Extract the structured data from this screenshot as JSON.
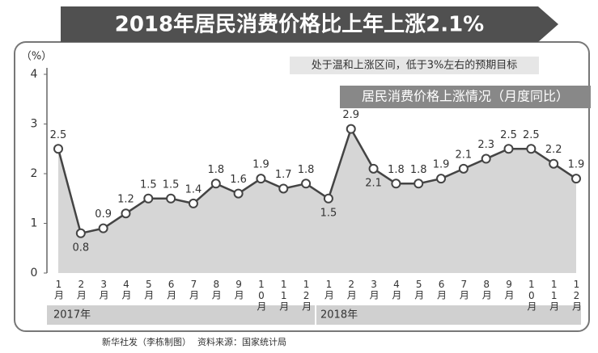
{
  "chart_data": {
    "type": "line",
    "title": "2018年居民消费价格比上年上涨2.1%",
    "subtitle": "处于温和上涨区间，低于3%左右的预期目标",
    "chart_label": "居民消费价格上涨情况（月度同比）",
    "y_label": "（%）",
    "categories": [
      "1月",
      "2月",
      "3月",
      "4月",
      "5月",
      "6月",
      "7月",
      "8月",
      "9月",
      "10月",
      "11月",
      "12月",
      "1月",
      "2月",
      "3月",
      "4月",
      "5月",
      "6月",
      "7月",
      "8月",
      "9月",
      "10月",
      "11月",
      "12月"
    ],
    "year_labels": [
      "2017年",
      "2018年"
    ],
    "values": [
      2.5,
      0.8,
      0.9,
      1.2,
      1.5,
      1.5,
      1.4,
      1.8,
      1.6,
      1.9,
      1.7,
      1.8,
      1.5,
      2.9,
      2.1,
      1.8,
      1.8,
      1.9,
      2.1,
      2.3,
      2.5,
      2.5,
      2.2,
      1.9
    ],
    "color": "#444444",
    "area_color": "#d6d6d6",
    "ylim": [
      0,
      4
    ],
    "yticks": [
      0,
      1,
      2,
      3,
      4
    ],
    "credit": "新华社发（李栋制图）",
    "source": "资料来源：国家统计局"
  }
}
